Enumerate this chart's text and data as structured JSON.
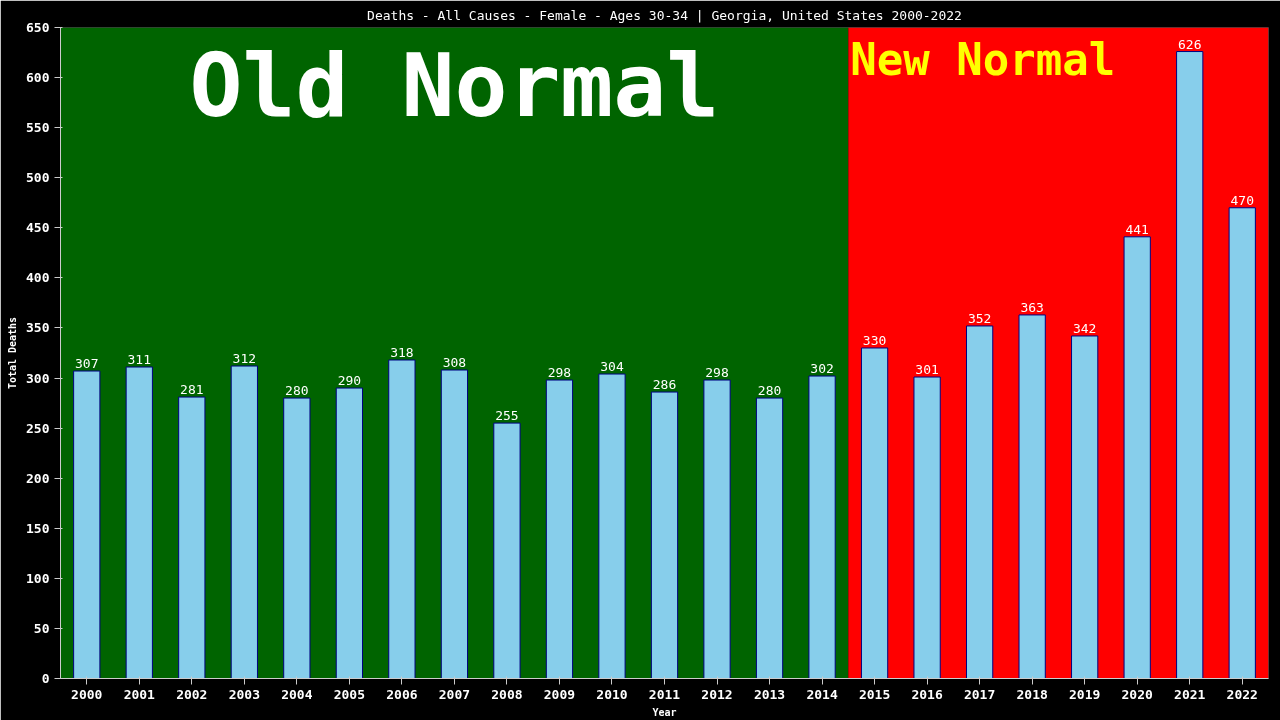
{
  "chart_data": {
    "type": "bar",
    "title": "Deaths - All Causes - Female - Ages 30-34 | Georgia, United States 2000-2022",
    "xlabel": "Year",
    "ylabel": "Total Deaths",
    "categories": [
      "2000",
      "2001",
      "2002",
      "2003",
      "2004",
      "2005",
      "2006",
      "2007",
      "2008",
      "2009",
      "2010",
      "2011",
      "2012",
      "2013",
      "2014",
      "2015",
      "2016",
      "2017",
      "2018",
      "2019",
      "2020",
      "2021",
      "2022"
    ],
    "values": [
      307,
      311,
      281,
      312,
      280,
      290,
      318,
      308,
      255,
      298,
      304,
      286,
      298,
      280,
      302,
      330,
      301,
      352,
      363,
      342,
      441,
      626,
      470
    ],
    "color": "#87ceeb",
    "ylim": [
      0,
      650
    ],
    "yticks": [
      0,
      50,
      100,
      150,
      200,
      250,
      300,
      350,
      400,
      450,
      500,
      550,
      600,
      650
    ],
    "grid": false,
    "data_labels": true,
    "bands": [
      {
        "axis": "x",
        "from": "2000",
        "to": "2014",
        "label": "Old Normal",
        "color": "#006400"
      },
      {
        "axis": "x",
        "from": "2015",
        "to": "2022",
        "label": "New Normal",
        "color": "#ff0000"
      }
    ]
  }
}
